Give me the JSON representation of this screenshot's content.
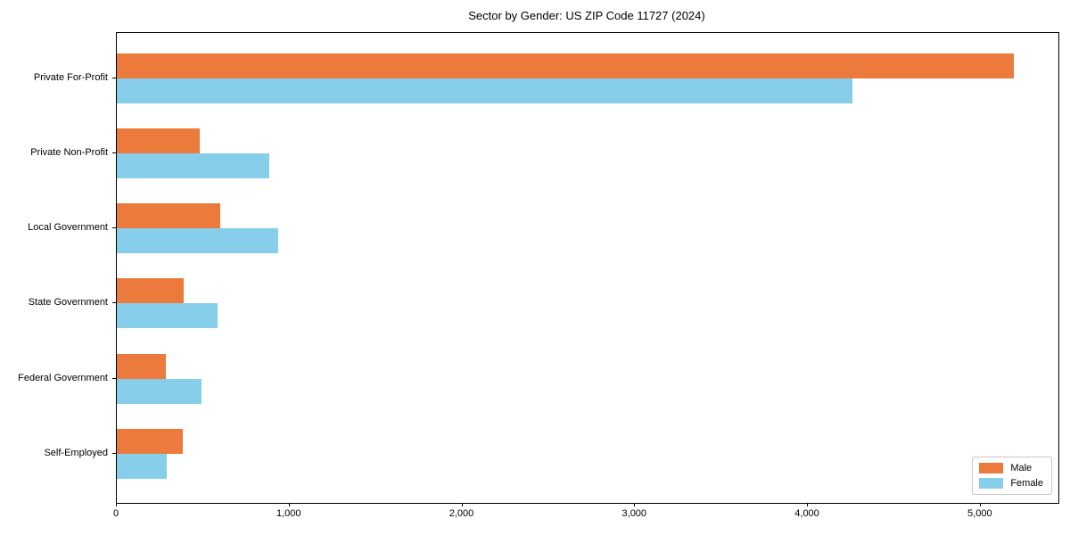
{
  "figure": {
    "title": "Sector by Gender: US ZIP Code 11727 (2024)"
  },
  "chart_data": {
    "type": "bar",
    "orientation": "horizontal",
    "title": "Sector by Gender: US ZIP Code 11727 (2024)",
    "categories": [
      "Private For-Profit",
      "Private Non-Profit",
      "Local Government",
      "State Government",
      "Federal Government",
      "Self-Employed"
    ],
    "series": [
      {
        "name": "Male",
        "color": "#EB7A3C",
        "values": [
          5190,
          480,
          600,
          385,
          285,
          380
        ]
      },
      {
        "name": "Female",
        "color": "#87CEEB",
        "values": [
          4260,
          880,
          935,
          585,
          490,
          290
        ]
      }
    ],
    "xlabel": "",
    "ylabel": "",
    "xlim": [
      0,
      5450
    ],
    "x_tick_values": [
      0,
      1000,
      2000,
      3000,
      4000,
      5000
    ],
    "x_tick_labels": [
      "0",
      "1,000",
      "2,000",
      "3,000",
      "4,000",
      "5,000"
    ],
    "grid": false,
    "legend": {
      "position": "lower-right",
      "entries": [
        "Male",
        "Female"
      ]
    }
  },
  "colors": {
    "spine": "#000000",
    "background": "#ffffff",
    "legend_border": "#c8c8c8",
    "text": "#000000"
  }
}
